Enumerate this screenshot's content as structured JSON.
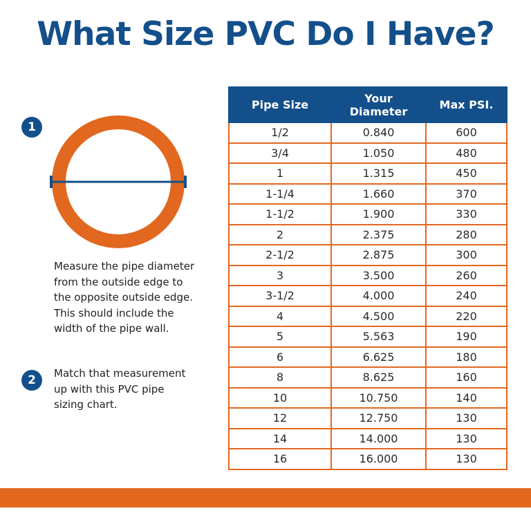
{
  "title": "What Size PVC Do I Have?",
  "colors": {
    "brand_blue": "#134f8b",
    "pvc_orange": "#e2671f"
  },
  "steps": [
    {
      "number": "1",
      "lines": [
        "Measure the pipe diameter",
        "from the outside edge to",
        "the opposite outside edge.",
        "This  should include the",
        "width of the pipe wall."
      ]
    },
    {
      "number": "2",
      "lines": [
        "Match that measurement",
        "up with this PVC pipe",
        "sizing chart."
      ]
    }
  ],
  "table": {
    "headers": [
      "Pipe Size",
      "Your Diameter",
      "Max PSI."
    ],
    "header_lines": [
      [
        "Pipe Size"
      ],
      [
        "Your",
        "Diameter"
      ],
      [
        "Max PSI."
      ]
    ],
    "rows": [
      [
        "1/2",
        "0.840",
        "600"
      ],
      [
        "3/4",
        "1.050",
        "480"
      ],
      [
        "1",
        "1.315",
        "450"
      ],
      [
        "1-1/4",
        "1.660",
        "370"
      ],
      [
        "1-1/2",
        "1.900",
        "330"
      ],
      [
        "2",
        "2.375",
        "280"
      ],
      [
        "2-1/2",
        "2.875",
        "300"
      ],
      [
        "3",
        "3.500",
        "260"
      ],
      [
        "3-1/2",
        "4.000",
        "240"
      ],
      [
        "4",
        "4.500",
        "220"
      ],
      [
        "5",
        "5.563",
        "190"
      ],
      [
        "6",
        "6.625",
        "180"
      ],
      [
        "8",
        "8.625",
        "160"
      ],
      [
        "10",
        "10.750",
        "140"
      ],
      [
        "12",
        "12.750",
        "130"
      ],
      [
        "14",
        "14.000",
        "130"
      ],
      [
        "16",
        "16.000",
        "130"
      ]
    ]
  }
}
